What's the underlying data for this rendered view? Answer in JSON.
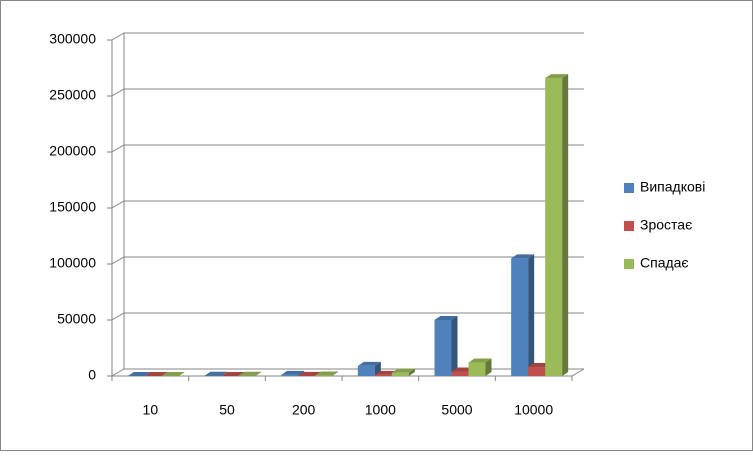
{
  "chart_data": {
    "type": "bar3d",
    "categories": [
      "10",
      "50",
      "200",
      "1000",
      "5000",
      "10000"
    ],
    "series": [
      {
        "name": "Випадкові",
        "color": "#4f81bd",
        "values": [
          50,
          200,
          1000,
          9000,
          50000,
          105000
        ]
      },
      {
        "name": "Зростає",
        "color": "#c0504d",
        "values": [
          0,
          0,
          100,
          1000,
          4000,
          8000
        ]
      },
      {
        "name": "Спадає",
        "color": "#9bbb59",
        "values": [
          50,
          200,
          500,
          3000,
          12000,
          266000
        ]
      }
    ],
    "ylim": [
      0,
      300000
    ],
    "yticks": [
      0,
      50000,
      100000,
      150000,
      200000,
      250000,
      300000
    ],
    "grid": true,
    "legend": "right"
  }
}
